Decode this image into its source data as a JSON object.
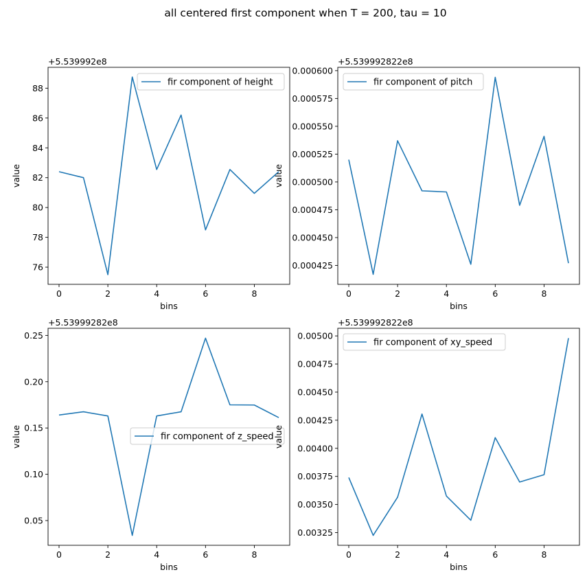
{
  "suptitle": "all centered first component when T = 200, tau = 10",
  "line_color": "#1f77b4",
  "chart_data": [
    {
      "type": "line",
      "offset_label": "+5.539992e8",
      "xlabel": "bins",
      "ylabel": "value",
      "legend": "fir component of height",
      "legend_loc": "upper right",
      "x": [
        0,
        1,
        2,
        3,
        4,
        5,
        6,
        7,
        8,
        9
      ],
      "values": [
        82.4,
        82.0,
        75.5,
        88.75,
        82.55,
        86.2,
        78.5,
        82.55,
        80.95,
        82.4
      ],
      "xlim": [
        -0.45,
        9.45
      ],
      "ylim": [
        74.85,
        89.4
      ],
      "xticks": [
        0,
        2,
        4,
        6,
        8
      ],
      "xtick_labels": [
        "0",
        "2",
        "4",
        "6",
        "8"
      ],
      "yticks": [
        76,
        78,
        80,
        82,
        84,
        86,
        88
      ],
      "ytick_labels": [
        "76",
        "78",
        "80",
        "82",
        "84",
        "86",
        "88"
      ]
    },
    {
      "type": "line",
      "offset_label": "+5.539992822e8",
      "xlabel": "bins",
      "ylabel": "value",
      "legend": "fir component of pitch",
      "legend_loc": "upper left",
      "x": [
        0,
        1,
        2,
        3,
        4,
        5,
        6,
        7,
        8,
        9
      ],
      "values": [
        0.00052,
        0.000417,
        0.000537,
        0.000492,
        0.000491,
        0.000426,
        0.000594,
        0.000479,
        0.000541,
        0.000427
      ],
      "xlim": [
        -0.45,
        9.45
      ],
      "ylim": [
        0.000408,
        0.000603
      ],
      "xticks": [
        0,
        2,
        4,
        6,
        8
      ],
      "xtick_labels": [
        "0",
        "2",
        "4",
        "6",
        "8"
      ],
      "yticks": [
        0.000425,
        0.00045,
        0.000475,
        0.0005,
        0.000525,
        0.00055,
        0.000575,
        0.0006
      ],
      "ytick_labels": [
        "0.000425",
        "0.000450",
        "0.000475",
        "0.000500",
        "0.000525",
        "0.000550",
        "0.000575",
        "0.000600"
      ]
    },
    {
      "type": "line",
      "offset_label": "+5.53999282e8",
      "xlabel": "bins",
      "ylabel": "value",
      "legend": "fir component of z_speed",
      "legend_loc": "center right",
      "x": [
        0,
        1,
        2,
        3,
        4,
        5,
        6,
        7,
        8,
        9
      ],
      "values": [
        0.164,
        0.1675,
        0.163,
        0.034,
        0.163,
        0.1675,
        0.247,
        0.175,
        0.1748,
        0.1612
      ],
      "xlim": [
        -0.45,
        9.45
      ],
      "ylim": [
        0.0233,
        0.2577
      ],
      "xticks": [
        0,
        2,
        4,
        6,
        8
      ],
      "xtick_labels": [
        "0",
        "2",
        "4",
        "6",
        "8"
      ],
      "yticks": [
        0.05,
        0.1,
        0.15,
        0.2,
        0.25
      ],
      "ytick_labels": [
        "0.05",
        "0.10",
        "0.15",
        "0.20",
        "0.25"
      ]
    },
    {
      "type": "line",
      "offset_label": "+5.539992822e8",
      "xlabel": "bins",
      "ylabel": "value",
      "legend": "fir component of xy_speed",
      "legend_loc": "upper left",
      "x": [
        0,
        1,
        2,
        3,
        4,
        5,
        6,
        7,
        8,
        9
      ],
      "values": [
        0.00374,
        0.003225,
        0.003565,
        0.004305,
        0.003575,
        0.00336,
        0.004095,
        0.0037,
        0.003765,
        0.00498
      ],
      "xlim": [
        -0.45,
        9.45
      ],
      "ylim": [
        0.003137,
        0.005068
      ],
      "xticks": [
        0,
        2,
        4,
        6,
        8
      ],
      "xtick_labels": [
        "0",
        "2",
        "4",
        "6",
        "8"
      ],
      "yticks": [
        0.00325,
        0.0035,
        0.00375,
        0.004,
        0.00425,
        0.0045,
        0.00475,
        0.005
      ],
      "ytick_labels": [
        "0.00325",
        "0.00350",
        "0.00375",
        "0.00400",
        "0.00425",
        "0.00450",
        "0.00475",
        "0.00500"
      ]
    }
  ]
}
